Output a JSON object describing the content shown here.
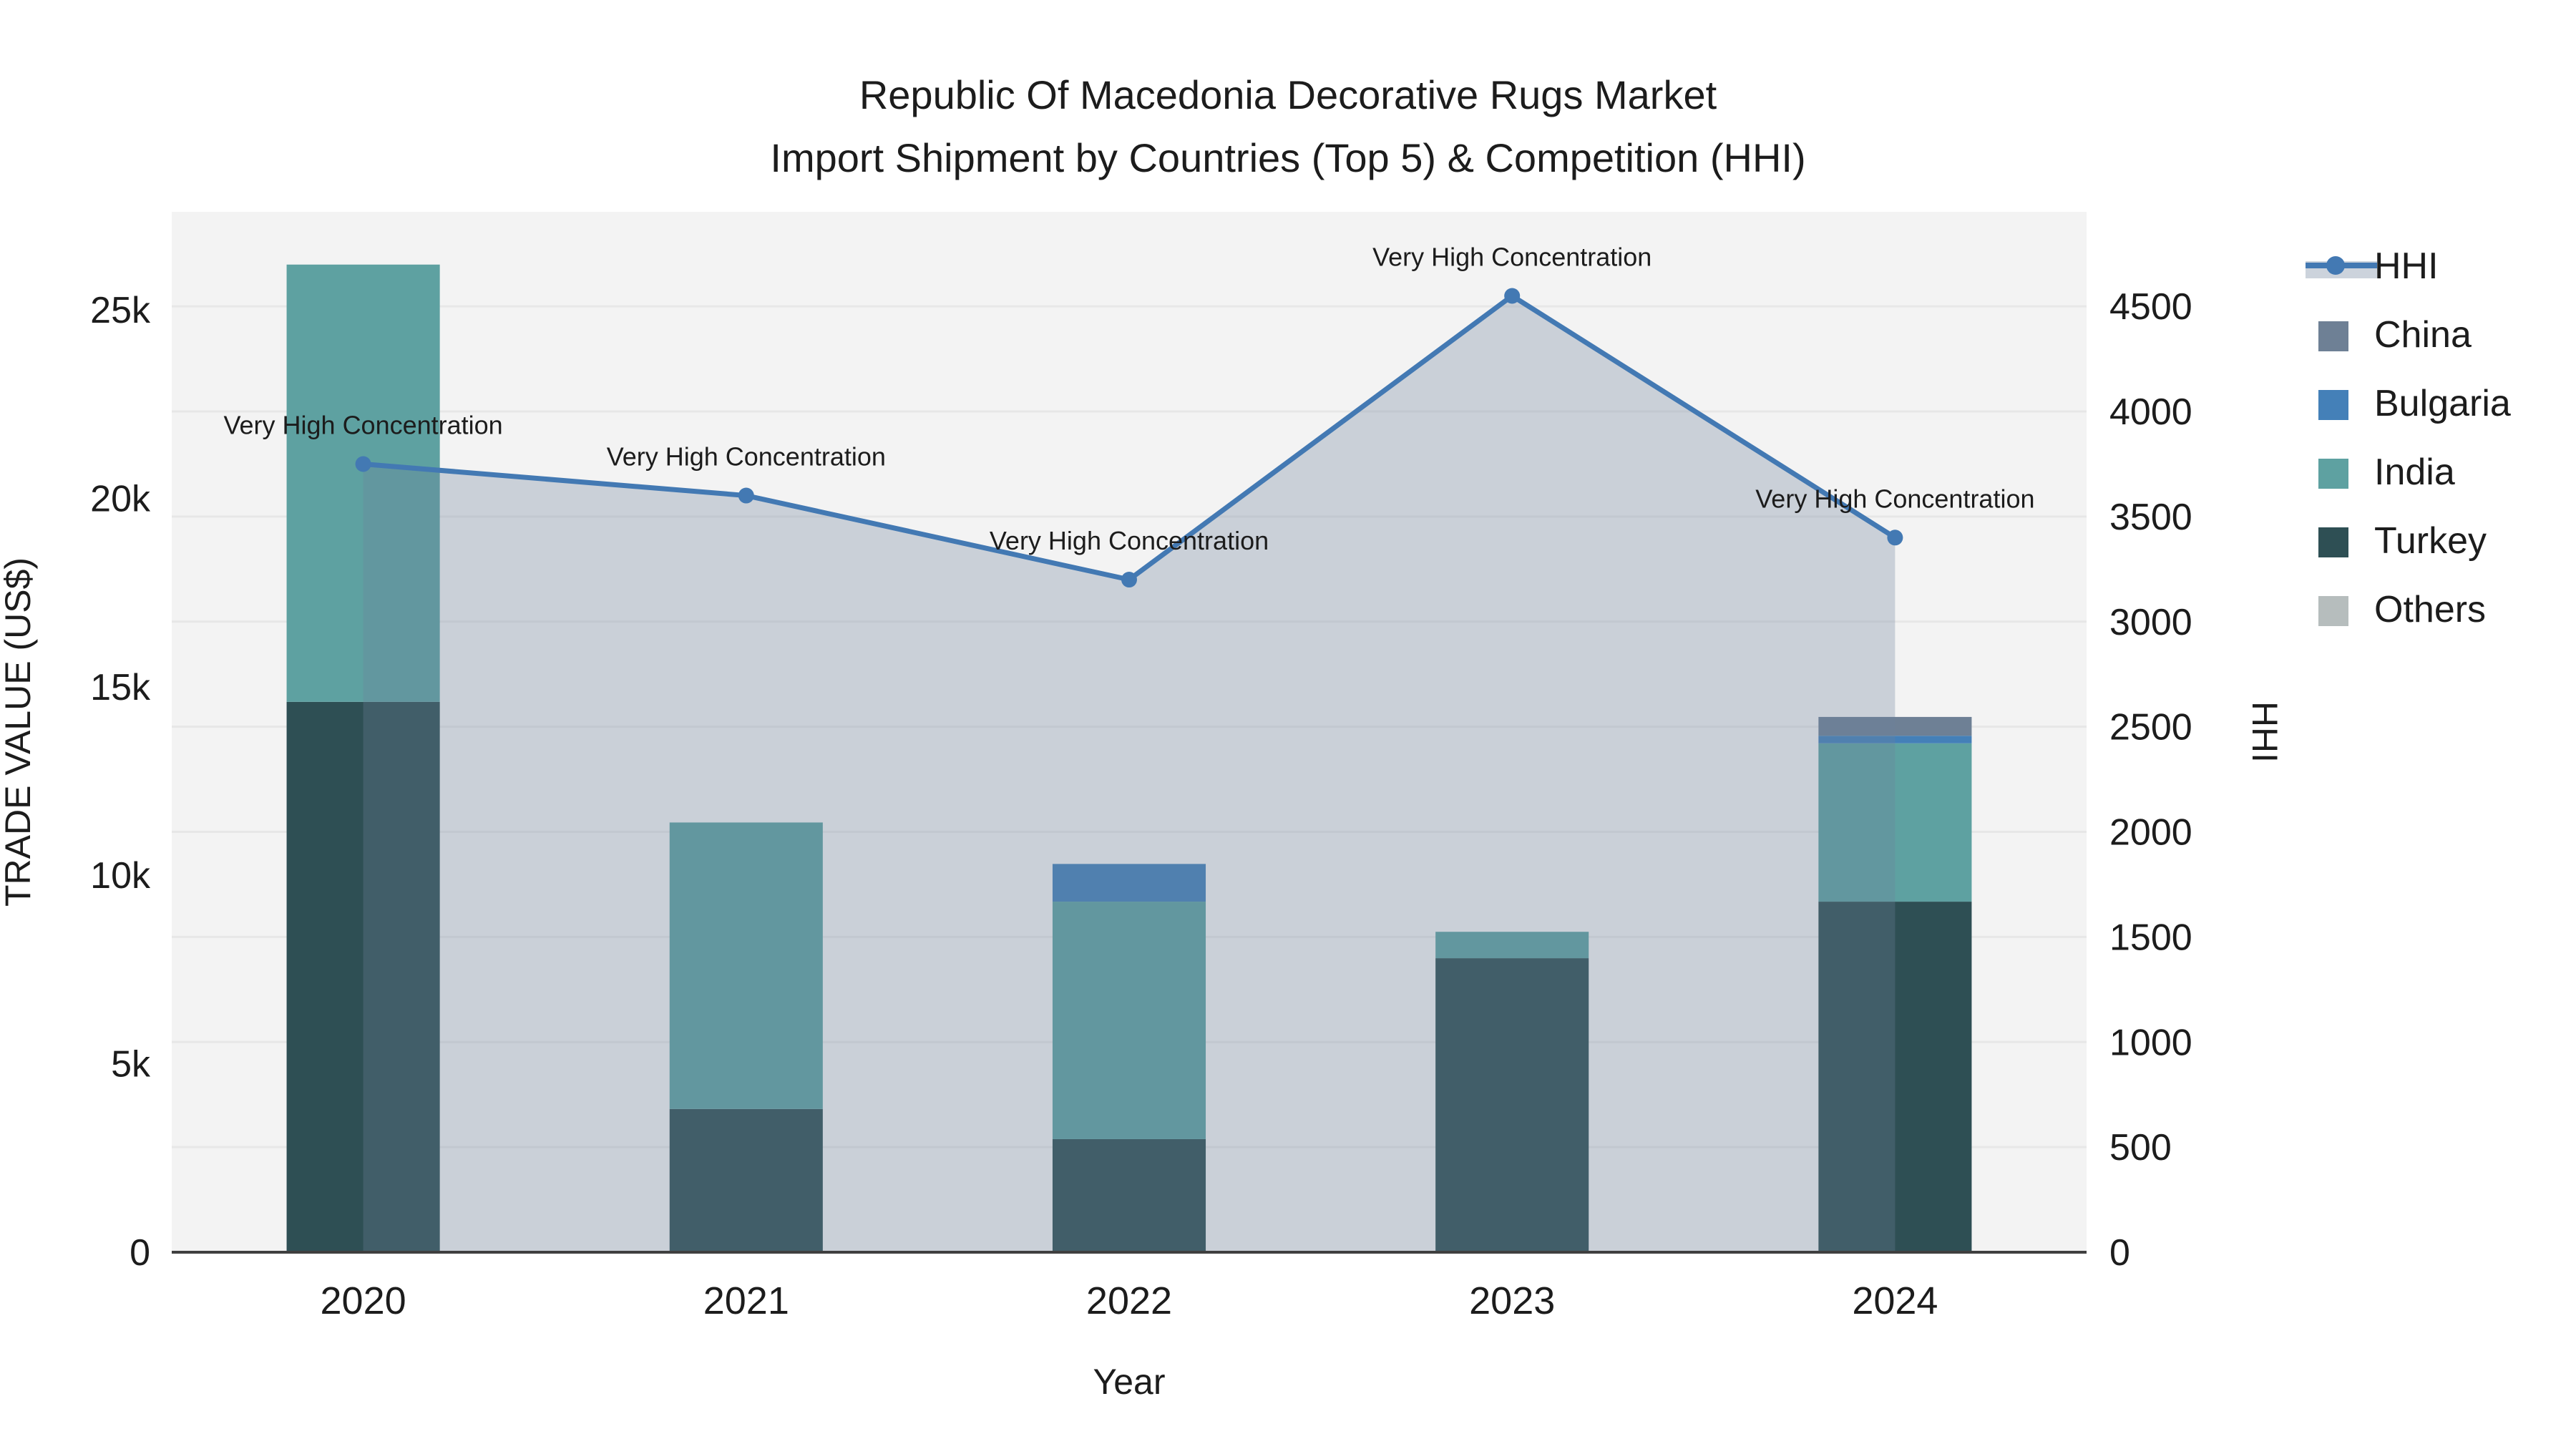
{
  "title": {
    "line1": "Republic Of Macedonia Decorative Rugs Market",
    "line2": "Import Shipment by Countries (Top 5) & Competition (HHI)"
  },
  "chart_data": {
    "type": "bar",
    "subtype": "stacked-bar-with-line",
    "x": [
      "2020",
      "2021",
      "2022",
      "2023",
      "2024"
    ],
    "xlabel": "Year",
    "ylabel_left": "TRADE VALUE (US$)",
    "ylabel_right": "HHI",
    "bar_series": [
      {
        "name": "Turkey",
        "color": "#2e4f54",
        "values": [
          14600,
          3800,
          3000,
          7800,
          9300
        ]
      },
      {
        "name": "India",
        "color": "#5ea1a1",
        "values": [
          11600,
          7600,
          6300,
          700,
          4200
        ]
      },
      {
        "name": "Bulgaria",
        "color": "#4480b8",
        "values": [
          0,
          0,
          1000,
          0,
          200
        ]
      },
      {
        "name": "China",
        "color": "#6e8095",
        "values": [
          0,
          0,
          0,
          0,
          500
        ]
      },
      {
        "name": "Others",
        "color": "#b6bdbd",
        "values": [
          0,
          0,
          0,
          0,
          0
        ]
      }
    ],
    "line_series": {
      "name": "HHI",
      "color": "#4379b3",
      "area_fill": "rgba(108,130,155,0.30)",
      "values": [
        3750,
        3600,
        3200,
        4550,
        3400
      ]
    },
    "annotations": [
      {
        "x": "2020",
        "text": "Very High Concentration"
      },
      {
        "x": "2021",
        "text": "Very High Concentration"
      },
      {
        "x": "2022",
        "text": "Very High Concentration"
      },
      {
        "x": "2023",
        "text": "Very High Concentration"
      },
      {
        "x": "2024",
        "text": "Very High Concentration"
      }
    ],
    "left_axis": {
      "tick_labels": [
        "0",
        "5k",
        "10k",
        "15k",
        "20k",
        "25k"
      ],
      "tick_values": [
        0,
        5000,
        10000,
        15000,
        20000,
        25000
      ],
      "range": [
        0,
        27600
      ]
    },
    "right_axis": {
      "tick_labels": [
        "0",
        "500",
        "1000",
        "1500",
        "2000",
        "2500",
        "3000",
        "3500",
        "4000",
        "4500"
      ],
      "tick_values": [
        0,
        500,
        1000,
        1500,
        2000,
        2500,
        3000,
        3500,
        4000,
        4500
      ],
      "range": [
        0,
        4950
      ]
    },
    "legend": [
      {
        "label": "HHI",
        "type": "line",
        "color": "#4379b3"
      },
      {
        "label": "China",
        "type": "square",
        "color": "#6e8095"
      },
      {
        "label": "Bulgaria",
        "type": "square",
        "color": "#4480b8"
      },
      {
        "label": "India",
        "type": "square",
        "color": "#5ea1a1"
      },
      {
        "label": "Turkey",
        "type": "square",
        "color": "#2e4f54"
      },
      {
        "label": "Others",
        "type": "square",
        "color": "#b6bdbd"
      }
    ],
    "layout_hints": {
      "plot_bg": "#f3f3f3",
      "grid_color": "#e7e7e7",
      "grid_interval_right_axis": 500,
      "axis_line_color": "#3f3f3f",
      "legend_position": "right",
      "legend_area_swatch_color": "#ccd3dc"
    }
  }
}
